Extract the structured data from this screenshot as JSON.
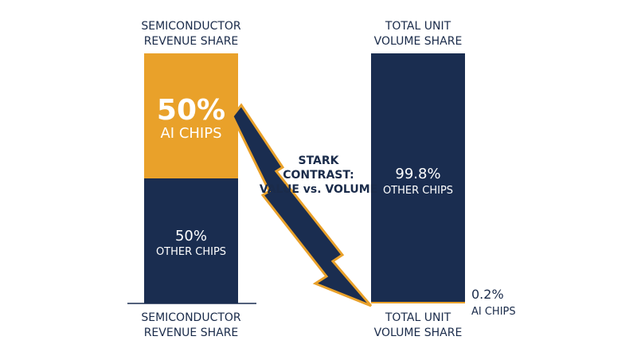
{
  "chart_data": {
    "type": "bar",
    "stacked": true,
    "normalized": true,
    "categories": [
      "SEMICONDUCTOR REVENUE SHARE",
      "TOTAL UNIT VOLUME SHARE"
    ],
    "category_lines": [
      [
        "SEMICONDUCTOR",
        "REVENUE SHARE"
      ],
      [
        "TOTAL UNIT",
        "VOLUME SHARE"
      ]
    ],
    "series": [
      {
        "name": "AI CHIPS",
        "values": [
          50,
          0.2
        ],
        "labels": [
          "50%",
          "0.2%"
        ],
        "color": "#e9a12a"
      },
      {
        "name": "OTHER CHIPS",
        "values": [
          50,
          99.8
        ],
        "labels": [
          "50%",
          "99.8%"
        ],
        "color": "#1a2d50"
      }
    ],
    "ylim": [
      0,
      100
    ],
    "annotation": {
      "lines": [
        "STARK",
        "CONTRAST:",
        "VALUE vs. VOLUME"
      ]
    },
    "colors": {
      "text": "#1a2b4a",
      "arrow_fill": "#1a2d50",
      "arrow_outline": "#e9a12a"
    }
  }
}
